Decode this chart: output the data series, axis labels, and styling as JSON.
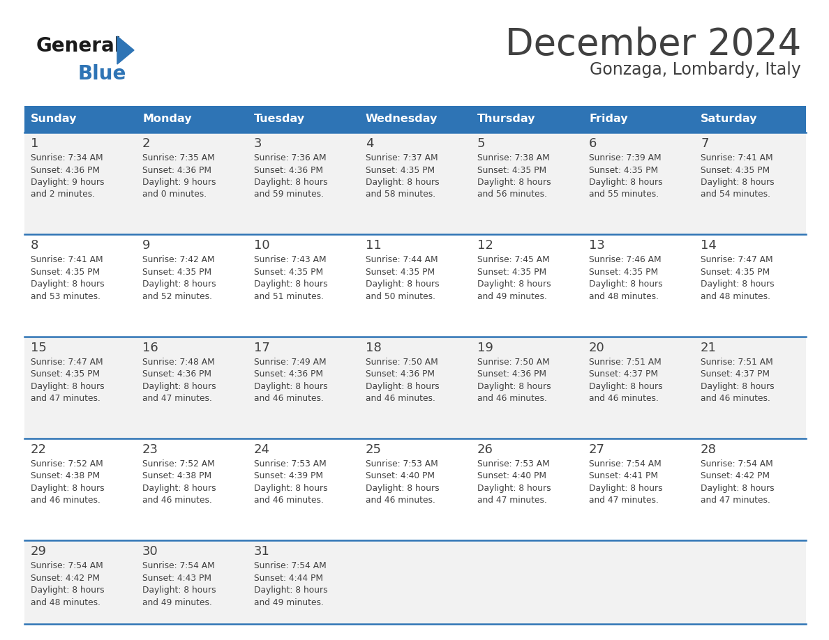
{
  "title": "December 2024",
  "subtitle": "Gonzaga, Lombardy, Italy",
  "header_color": "#2E74B5",
  "header_text_color": "#FFFFFF",
  "days_of_week": [
    "Sunday",
    "Monday",
    "Tuesday",
    "Wednesday",
    "Thursday",
    "Friday",
    "Saturday"
  ],
  "bg_color": "#FFFFFF",
  "cell_bg_light": "#F2F2F2",
  "cell_bg_white": "#FFFFFF",
  "separator_color": "#2E74B5",
  "text_color": "#404040",
  "logo_general_color": "#1a1a1a",
  "logo_blue_color": "#2E74B5",
  "calendar_data": [
    [
      {
        "day": 1,
        "sunrise": "7:34 AM",
        "sunset": "4:36 PM",
        "daylight_hours": 9,
        "daylight_minutes": 2
      },
      {
        "day": 2,
        "sunrise": "7:35 AM",
        "sunset": "4:36 PM",
        "daylight_hours": 9,
        "daylight_minutes": 0
      },
      {
        "day": 3,
        "sunrise": "7:36 AM",
        "sunset": "4:36 PM",
        "daylight_hours": 8,
        "daylight_minutes": 59
      },
      {
        "day": 4,
        "sunrise": "7:37 AM",
        "sunset": "4:35 PM",
        "daylight_hours": 8,
        "daylight_minutes": 58
      },
      {
        "day": 5,
        "sunrise": "7:38 AM",
        "sunset": "4:35 PM",
        "daylight_hours": 8,
        "daylight_minutes": 56
      },
      {
        "day": 6,
        "sunrise": "7:39 AM",
        "sunset": "4:35 PM",
        "daylight_hours": 8,
        "daylight_minutes": 55
      },
      {
        "day": 7,
        "sunrise": "7:41 AM",
        "sunset": "4:35 PM",
        "daylight_hours": 8,
        "daylight_minutes": 54
      }
    ],
    [
      {
        "day": 8,
        "sunrise": "7:41 AM",
        "sunset": "4:35 PM",
        "daylight_hours": 8,
        "daylight_minutes": 53
      },
      {
        "day": 9,
        "sunrise": "7:42 AM",
        "sunset": "4:35 PM",
        "daylight_hours": 8,
        "daylight_minutes": 52
      },
      {
        "day": 10,
        "sunrise": "7:43 AM",
        "sunset": "4:35 PM",
        "daylight_hours": 8,
        "daylight_minutes": 51
      },
      {
        "day": 11,
        "sunrise": "7:44 AM",
        "sunset": "4:35 PM",
        "daylight_hours": 8,
        "daylight_minutes": 50
      },
      {
        "day": 12,
        "sunrise": "7:45 AM",
        "sunset": "4:35 PM",
        "daylight_hours": 8,
        "daylight_minutes": 49
      },
      {
        "day": 13,
        "sunrise": "7:46 AM",
        "sunset": "4:35 PM",
        "daylight_hours": 8,
        "daylight_minutes": 48
      },
      {
        "day": 14,
        "sunrise": "7:47 AM",
        "sunset": "4:35 PM",
        "daylight_hours": 8,
        "daylight_minutes": 48
      }
    ],
    [
      {
        "day": 15,
        "sunrise": "7:47 AM",
        "sunset": "4:35 PM",
        "daylight_hours": 8,
        "daylight_minutes": 47
      },
      {
        "day": 16,
        "sunrise": "7:48 AM",
        "sunset": "4:36 PM",
        "daylight_hours": 8,
        "daylight_minutes": 47
      },
      {
        "day": 17,
        "sunrise": "7:49 AM",
        "sunset": "4:36 PM",
        "daylight_hours": 8,
        "daylight_minutes": 46
      },
      {
        "day": 18,
        "sunrise": "7:50 AM",
        "sunset": "4:36 PM",
        "daylight_hours": 8,
        "daylight_minutes": 46
      },
      {
        "day": 19,
        "sunrise": "7:50 AM",
        "sunset": "4:36 PM",
        "daylight_hours": 8,
        "daylight_minutes": 46
      },
      {
        "day": 20,
        "sunrise": "7:51 AM",
        "sunset": "4:37 PM",
        "daylight_hours": 8,
        "daylight_minutes": 46
      },
      {
        "day": 21,
        "sunrise": "7:51 AM",
        "sunset": "4:37 PM",
        "daylight_hours": 8,
        "daylight_minutes": 46
      }
    ],
    [
      {
        "day": 22,
        "sunrise": "7:52 AM",
        "sunset": "4:38 PM",
        "daylight_hours": 8,
        "daylight_minutes": 46
      },
      {
        "day": 23,
        "sunrise": "7:52 AM",
        "sunset": "4:38 PM",
        "daylight_hours": 8,
        "daylight_minutes": 46
      },
      {
        "day": 24,
        "sunrise": "7:53 AM",
        "sunset": "4:39 PM",
        "daylight_hours": 8,
        "daylight_minutes": 46
      },
      {
        "day": 25,
        "sunrise": "7:53 AM",
        "sunset": "4:40 PM",
        "daylight_hours": 8,
        "daylight_minutes": 46
      },
      {
        "day": 26,
        "sunrise": "7:53 AM",
        "sunset": "4:40 PM",
        "daylight_hours": 8,
        "daylight_minutes": 47
      },
      {
        "day": 27,
        "sunrise": "7:54 AM",
        "sunset": "4:41 PM",
        "daylight_hours": 8,
        "daylight_minutes": 47
      },
      {
        "day": 28,
        "sunrise": "7:54 AM",
        "sunset": "4:42 PM",
        "daylight_hours": 8,
        "daylight_minutes": 47
      }
    ],
    [
      {
        "day": 29,
        "sunrise": "7:54 AM",
        "sunset": "4:42 PM",
        "daylight_hours": 8,
        "daylight_minutes": 48
      },
      {
        "day": 30,
        "sunrise": "7:54 AM",
        "sunset": "4:43 PM",
        "daylight_hours": 8,
        "daylight_minutes": 49
      },
      {
        "day": 31,
        "sunrise": "7:54 AM",
        "sunset": "4:44 PM",
        "daylight_hours": 8,
        "daylight_minutes": 49
      },
      null,
      null,
      null,
      null
    ]
  ]
}
